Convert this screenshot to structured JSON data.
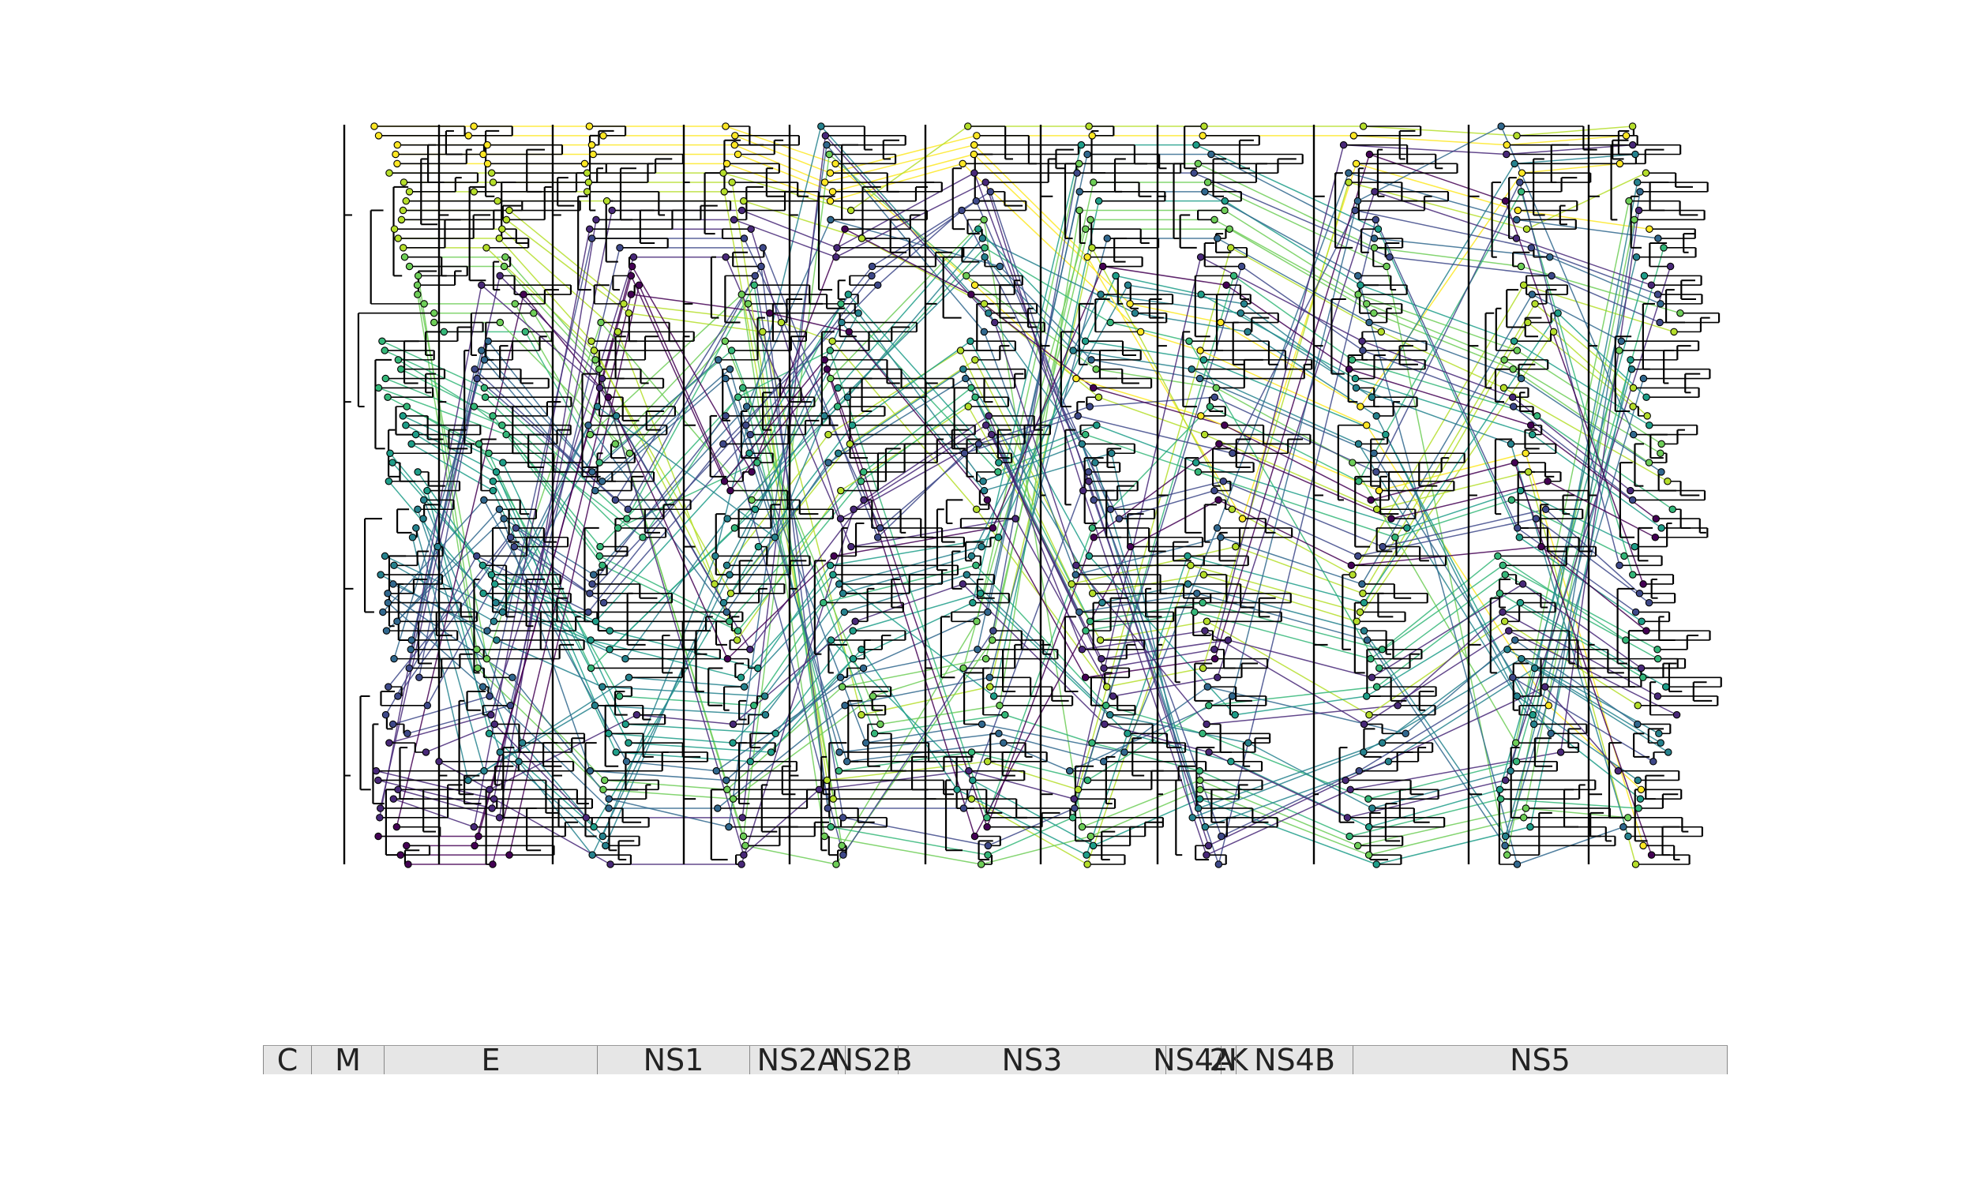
{
  "figure": {
    "genes": [
      {
        "name": "C",
        "start": 0,
        "end": 61
      },
      {
        "name": "M",
        "start": 61,
        "end": 153
      },
      {
        "name": "E",
        "start": 153,
        "end": 423
      },
      {
        "name": "NS1",
        "start": 423,
        "end": 616
      },
      {
        "name": "NS2A",
        "start": 616,
        "end": 737
      },
      {
        "name": "NS2B",
        "start": 737,
        "end": 804
      },
      {
        "name": "NS3",
        "start": 804,
        "end": 1143
      },
      {
        "name": "NS4A",
        "start": 1143,
        "end": 1213
      },
      {
        "name": "2K",
        "start": 1213,
        "end": 1232
      },
      {
        "name": "NS4B",
        "start": 1232,
        "end": 1380
      },
      {
        "name": "NS5",
        "start": 1380,
        "end": 1855
      }
    ],
    "genome_length": 1855,
    "colormap": "viridis",
    "colors": {
      "edge": "#000000",
      "node_outline": "#000000",
      "bar_fill": "#e6e6e6",
      "bar_border": "#888888"
    }
  }
}
